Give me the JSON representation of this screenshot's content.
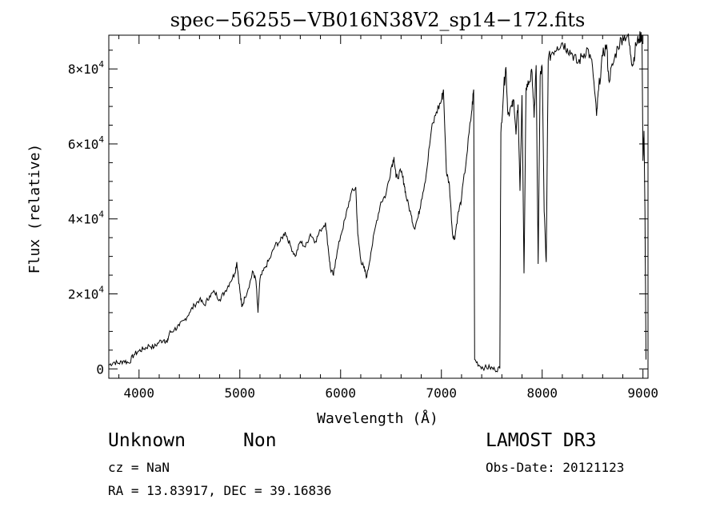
{
  "colors": {
    "background": "#ffffff",
    "ink": "#000000"
  },
  "chart_data": {
    "type": "line",
    "title": "spec−56255−VB016N38V2_sp14−172.fits",
    "xlabel": "Wavelength (Å)",
    "ylabel": "Flux (relative)",
    "xlim": [
      3700,
      9050
    ],
    "ylim": [
      -2500,
      89000
    ],
    "x_ticks": [
      4000,
      5000,
      6000,
      7000,
      8000,
      9000
    ],
    "x_tick_labels": [
      "4000",
      "5000",
      "6000",
      "7000",
      "8000",
      "9000"
    ],
    "y_ticks": [
      0,
      20000,
      40000,
      60000,
      80000
    ],
    "y_tick_labels": [
      {
        "mant": "0",
        "exp": ""
      },
      {
        "mant": "2×10",
        "exp": "4"
      },
      {
        "mant": "4×10",
        "exp": "4"
      },
      {
        "mant": "6×10",
        "exp": "4"
      },
      {
        "mant": "8×10",
        "exp": "4"
      }
    ],
    "grid": false,
    "series": [
      {
        "name": "flux",
        "points": [
          [
            3700,
            1000
          ],
          [
            3750,
            1800
          ],
          [
            3800,
            1500
          ],
          [
            3850,
            2200
          ],
          [
            3900,
            1600
          ],
          [
            3950,
            3800
          ],
          [
            4000,
            4800
          ],
          [
            4050,
            5400
          ],
          [
            4100,
            6200
          ],
          [
            4150,
            5800
          ],
          [
            4200,
            7200
          ],
          [
            4250,
            7800
          ],
          [
            4280,
            7000
          ],
          [
            4300,
            9500
          ],
          [
            4350,
            10500
          ],
          [
            4400,
            11500
          ],
          [
            4450,
            13000
          ],
          [
            4500,
            15000
          ],
          [
            4550,
            17000
          ],
          [
            4600,
            18500
          ],
          [
            4650,
            17000
          ],
          [
            4700,
            19500
          ],
          [
            4750,
            20500
          ],
          [
            4800,
            18500
          ],
          [
            4850,
            20500
          ],
          [
            4900,
            23000
          ],
          [
            4950,
            25500
          ],
          [
            4970,
            28500
          ],
          [
            5000,
            21000
          ],
          [
            5020,
            16500
          ],
          [
            5050,
            19000
          ],
          [
            5100,
            23000
          ],
          [
            5130,
            26000
          ],
          [
            5160,
            23500
          ],
          [
            5180,
            15000
          ],
          [
            5200,
            24000
          ],
          [
            5250,
            27000
          ],
          [
            5300,
            29500
          ],
          [
            5350,
            33000
          ],
          [
            5400,
            34000
          ],
          [
            5450,
            36500
          ],
          [
            5500,
            33000
          ],
          [
            5550,
            30000
          ],
          [
            5600,
            34000
          ],
          [
            5650,
            32500
          ],
          [
            5700,
            36000
          ],
          [
            5750,
            34000
          ],
          [
            5800,
            37000
          ],
          [
            5850,
            39000
          ],
          [
            5880,
            31500
          ],
          [
            5900,
            26500
          ],
          [
            5930,
            25000
          ],
          [
            5950,
            29000
          ],
          [
            6000,
            35500
          ],
          [
            6050,
            40500
          ],
          [
            6100,
            46500
          ],
          [
            6150,
            48500
          ],
          [
            6170,
            36000
          ],
          [
            6200,
            29000
          ],
          [
            6230,
            27000
          ],
          [
            6260,
            24500
          ],
          [
            6300,
            31000
          ],
          [
            6350,
            38500
          ],
          [
            6400,
            44500
          ],
          [
            6450,
            46500
          ],
          [
            6500,
            53500
          ],
          [
            6530,
            56500
          ],
          [
            6550,
            51000
          ],
          [
            6600,
            52500
          ],
          [
            6630,
            49500
          ],
          [
            6650,
            46000
          ],
          [
            6700,
            41000
          ],
          [
            6730,
            37500
          ],
          [
            6770,
            40500
          ],
          [
            6800,
            45000
          ],
          [
            6850,
            52000
          ],
          [
            6900,
            63500
          ],
          [
            6950,
            68500
          ],
          [
            7000,
            71500
          ],
          [
            7020,
            74500
          ],
          [
            7050,
            52500
          ],
          [
            7080,
            49000
          ],
          [
            7110,
            36000
          ],
          [
            7130,
            34500
          ],
          [
            7160,
            40500
          ],
          [
            7200,
            45500
          ],
          [
            7250,
            56500
          ],
          [
            7300,
            68500
          ],
          [
            7320,
            74500
          ],
          [
            7330,
            2500
          ],
          [
            7380,
            800
          ],
          [
            7430,
            300
          ],
          [
            7480,
            400
          ],
          [
            7530,
            -200
          ],
          [
            7580,
            100
          ],
          [
            7590,
            63000
          ],
          [
            7620,
            75500
          ],
          [
            7640,
            80500
          ],
          [
            7660,
            68000
          ],
          [
            7700,
            70000
          ],
          [
            7720,
            71500
          ],
          [
            7740,
            62500
          ],
          [
            7760,
            70500
          ],
          [
            7780,
            47500
          ],
          [
            7800,
            73000
          ],
          [
            7820,
            25500
          ],
          [
            7840,
            75000
          ],
          [
            7870,
            76500
          ],
          [
            7900,
            79000
          ],
          [
            7920,
            67000
          ],
          [
            7940,
            81000
          ],
          [
            7960,
            28000
          ],
          [
            7980,
            78000
          ],
          [
            8000,
            80500
          ],
          [
            8020,
            42000
          ],
          [
            8040,
            28500
          ],
          [
            8060,
            82500
          ],
          [
            8100,
            84500
          ],
          [
            8150,
            86000
          ],
          [
            8200,
            87000
          ],
          [
            8250,
            85500
          ],
          [
            8300,
            84000
          ],
          [
            8350,
            81500
          ],
          [
            8400,
            83500
          ],
          [
            8450,
            85500
          ],
          [
            8500,
            80500
          ],
          [
            8540,
            67500
          ],
          [
            8560,
            74500
          ],
          [
            8600,
            83500
          ],
          [
            8640,
            86500
          ],
          [
            8660,
            77000
          ],
          [
            8700,
            81000
          ],
          [
            8750,
            86000
          ],
          [
            8800,
            88500
          ],
          [
            8850,
            89000
          ],
          [
            8880,
            83500
          ],
          [
            8900,
            81000
          ],
          [
            8930,
            86500
          ],
          [
            8960,
            88000
          ],
          [
            8990,
            89000
          ],
          [
            9000,
            55500
          ],
          [
            9010,
            63500
          ],
          [
            9020,
            42000
          ],
          [
            9030,
            2500
          ]
        ]
      }
    ]
  },
  "info": {
    "object_class": "Unknown",
    "subclass": "Non",
    "survey": "LAMOST DR3",
    "cz": "cz = NaN",
    "obs_date": "Obs-Date: 20121123",
    "coords": "RA =  13.83917, DEC =  39.16836"
  }
}
